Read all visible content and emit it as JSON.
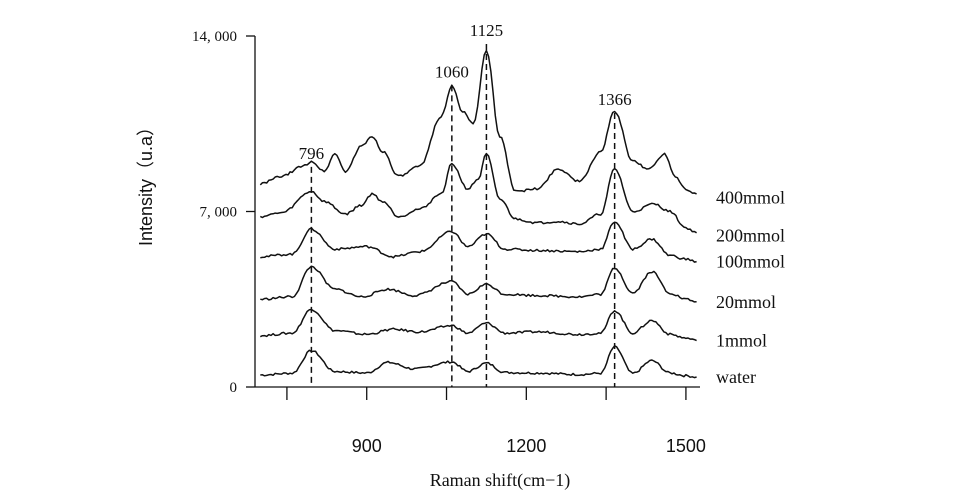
{
  "chart_data": {
    "type": "line",
    "title": "",
    "xlabel": "Raman shift(cm−1)",
    "ylabel": "Intensity（u.a）",
    "xlim": [
      690,
      1530
    ],
    "ylim": [
      0,
      14000
    ],
    "x_ticks": [
      900,
      1200,
      1500
    ],
    "x_tick_labels": [
      "900",
      "1200",
      "1500"
    ],
    "x_minor_ticks": [
      750,
      1050,
      1350
    ],
    "y_ticks": [
      0,
      7000,
      14000
    ],
    "y_tick_labels": [
      "0",
      "7, 000",
      "14, 000"
    ],
    "grid": false,
    "legend": "none",
    "line_color": "#111111",
    "peak_lines": [
      {
        "x": 796,
        "label": "796",
        "label_y": 9100
      },
      {
        "x": 1060,
        "label": "1060",
        "label_y": 12350
      },
      {
        "x": 1125,
        "label": "1125",
        "label_y": 14000
      },
      {
        "x": 1366,
        "label": "1366",
        "label_y": 11250
      }
    ],
    "series": [
      {
        "name": "water",
        "label_y": 400,
        "points": [
          [
            700,
            480
          ],
          [
            760,
            550
          ],
          [
            796,
            1450
          ],
          [
            840,
            620
          ],
          [
            900,
            560
          ],
          [
            940,
            980
          ],
          [
            990,
            720
          ],
          [
            1060,
            1000
          ],
          [
            1090,
            620
          ],
          [
            1125,
            950
          ],
          [
            1160,
            580
          ],
          [
            1220,
            560
          ],
          [
            1300,
            500
          ],
          [
            1340,
            550
          ],
          [
            1366,
            1600
          ],
          [
            1400,
            540
          ],
          [
            1436,
            1050
          ],
          [
            1470,
            560
          ],
          [
            1500,
            450
          ],
          [
            1520,
            400
          ]
        ]
      },
      {
        "name": "1mmol",
        "label_y": 1850,
        "points": [
          [
            700,
            2050
          ],
          [
            760,
            2150
          ],
          [
            796,
            3100
          ],
          [
            840,
            2250
          ],
          [
            900,
            2100
          ],
          [
            950,
            2300
          ],
          [
            1000,
            2200
          ],
          [
            1060,
            2450
          ],
          [
            1090,
            2150
          ],
          [
            1125,
            2550
          ],
          [
            1160,
            2150
          ],
          [
            1220,
            2200
          ],
          [
            1300,
            2100
          ],
          [
            1340,
            2150
          ],
          [
            1366,
            3050
          ],
          [
            1400,
            2150
          ],
          [
            1436,
            2650
          ],
          [
            1470,
            2100
          ],
          [
            1500,
            1950
          ],
          [
            1520,
            1850
          ]
        ]
      },
      {
        "name": "20mmol",
        "label_y": 3400,
        "points": [
          [
            700,
            3500
          ],
          [
            760,
            3600
          ],
          [
            796,
            4800
          ],
          [
            840,
            3900
          ],
          [
            890,
            3600
          ],
          [
            940,
            3900
          ],
          [
            990,
            3650
          ],
          [
            1060,
            4200
          ],
          [
            1090,
            3700
          ],
          [
            1125,
            4100
          ],
          [
            1160,
            3700
          ],
          [
            1220,
            3650
          ],
          [
            1300,
            3600
          ],
          [
            1340,
            3700
          ],
          [
            1366,
            4750
          ],
          [
            1400,
            3750
          ],
          [
            1436,
            4600
          ],
          [
            1470,
            3750
          ],
          [
            1500,
            3500
          ],
          [
            1520,
            3400
          ]
        ]
      },
      {
        "name": "100mmol",
        "label_y": 5000,
        "points": [
          [
            700,
            5200
          ],
          [
            760,
            5300
          ],
          [
            796,
            6300
          ],
          [
            840,
            5500
          ],
          [
            900,
            5600
          ],
          [
            950,
            5200
          ],
          [
            1000,
            5400
          ],
          [
            1060,
            6200
          ],
          [
            1090,
            5600
          ],
          [
            1125,
            6100
          ],
          [
            1160,
            5500
          ],
          [
            1220,
            5450
          ],
          [
            1300,
            5400
          ],
          [
            1340,
            5500
          ],
          [
            1366,
            6600
          ],
          [
            1400,
            5500
          ],
          [
            1436,
            5900
          ],
          [
            1470,
            5250
          ],
          [
            1500,
            5100
          ],
          [
            1520,
            5000
          ]
        ]
      },
      {
        "name": "200mmol",
        "label_y": 6050,
        "points": [
          [
            700,
            6800
          ],
          [
            740,
            6950
          ],
          [
            796,
            7800
          ],
          [
            820,
            7400
          ],
          [
            860,
            6900
          ],
          [
            890,
            7250
          ],
          [
            910,
            7700
          ],
          [
            930,
            7400
          ],
          [
            960,
            6800
          ],
          [
            1000,
            7100
          ],
          [
            1040,
            7700
          ],
          [
            1060,
            8900
          ],
          [
            1090,
            7900
          ],
          [
            1110,
            8300
          ],
          [
            1125,
            9300
          ],
          [
            1150,
            7500
          ],
          [
            1180,
            6700
          ],
          [
            1220,
            6550
          ],
          [
            1260,
            6600
          ],
          [
            1300,
            6500
          ],
          [
            1340,
            6900
          ],
          [
            1366,
            8700
          ],
          [
            1400,
            7000
          ],
          [
            1440,
            7300
          ],
          [
            1470,
            7000
          ],
          [
            1500,
            6350
          ],
          [
            1520,
            6150
          ]
        ]
      },
      {
        "name": "400mmol",
        "label_y": 7550,
        "points": [
          [
            700,
            8100
          ],
          [
            740,
            8400
          ],
          [
            780,
            8800
          ],
          [
            796,
            9000
          ],
          [
            820,
            8600
          ],
          [
            840,
            9300
          ],
          [
            860,
            8600
          ],
          [
            890,
            9600
          ],
          [
            910,
            10000
          ],
          [
            930,
            9400
          ],
          [
            960,
            8400
          ],
          [
            1000,
            8800
          ],
          [
            1040,
            10800
          ],
          [
            1060,
            12000
          ],
          [
            1080,
            11000
          ],
          [
            1100,
            10500
          ],
          [
            1125,
            13400
          ],
          [
            1150,
            10000
          ],
          [
            1180,
            7800
          ],
          [
            1220,
            7900
          ],
          [
            1260,
            8700
          ],
          [
            1300,
            8200
          ],
          [
            1340,
            9400
          ],
          [
            1366,
            11000
          ],
          [
            1400,
            9000
          ],
          [
            1430,
            8700
          ],
          [
            1460,
            9300
          ],
          [
            1480,
            8400
          ],
          [
            1500,
            7900
          ],
          [
            1520,
            7700
          ]
        ]
      }
    ]
  }
}
